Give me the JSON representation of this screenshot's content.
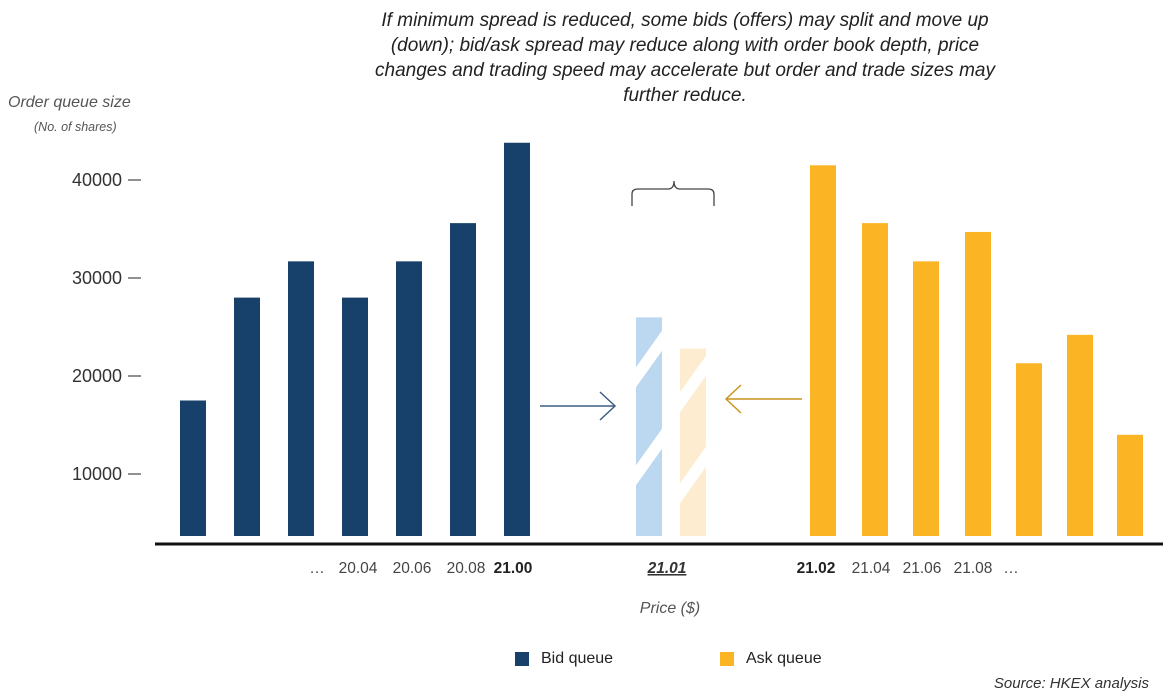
{
  "chart_data": {
    "type": "bar",
    "annotation": "If minimum spread is reduced, some bids (offers) may split and move up (down); bid/ask spread may reduce along with order book depth, price changes and trading speed may accelerate but order and trade sizes may further reduce.",
    "ylabel": "Order queue size",
    "ylabel_unit": "(No. of shares)",
    "xlabel": "Price ($)",
    "ylim": [
      3500,
      46000
    ],
    "yticks": [
      10000,
      20000,
      30000,
      40000
    ],
    "series": [
      {
        "name": "Bid queue",
        "color": "#17416a",
        "values": [
          17500,
          28000,
          31700,
          28000,
          31700,
          35600,
          43800
        ]
      },
      {
        "name": "Ask queue",
        "color": "#fbb423",
        "values": [
          41500,
          35600,
          31700,
          34700,
          21300,
          24200,
          14000
        ]
      }
    ],
    "hypothetical": [
      {
        "series": "Bid queue",
        "value": 26000,
        "color": "#bcd8f1"
      },
      {
        "series": "Ask queue",
        "value": 22800,
        "color": "#fdeccf"
      }
    ],
    "bid_labels": [
      "…",
      "20.04",
      "20.06",
      "20.08",
      "21.00"
    ],
    "mid_label": "21.01",
    "ask_labels": [
      "21.02",
      "21.04",
      "21.06",
      "21.08",
      "…"
    ],
    "source": "Source: HKEX analysis"
  }
}
